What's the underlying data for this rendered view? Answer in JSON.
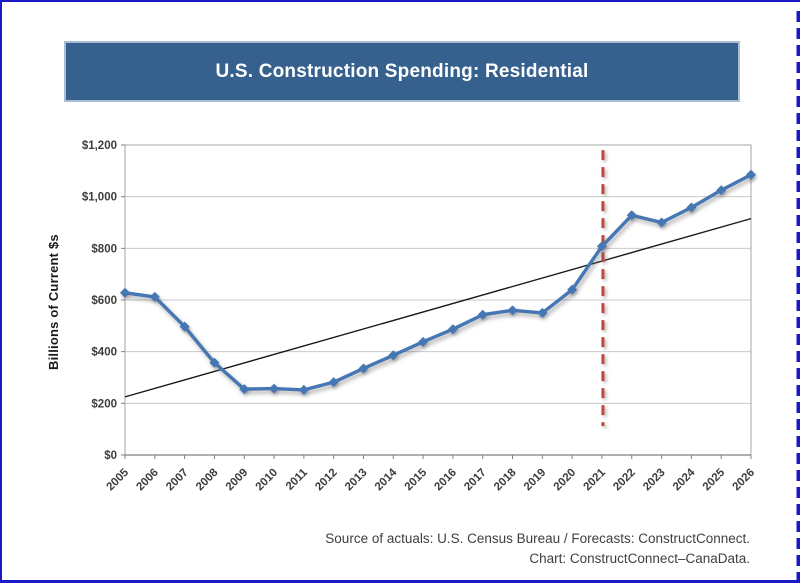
{
  "page": {
    "outer_border_color": "#1c18c4"
  },
  "banner": {
    "title": "U.S. Construction Spending: Residential",
    "bg_color": "#36618e",
    "border_color": "#a9bdd4",
    "text_color": "#ffffff"
  },
  "source_note": {
    "line1": "Source of actuals: U.S. Census Bureau / Forecasts: ConstructConnect.",
    "line2": "Chart: ConstructConnect–CanaData."
  },
  "chart_data": {
    "type": "line",
    "title": "U.S. Construction Spending: Residential",
    "xlabel": "",
    "ylabel": "Billions of Current $s",
    "ylim": [
      0,
      1200
    ],
    "ytick_step": 200,
    "ytick_labels": [
      "$0",
      "$200",
      "$400",
      "$600",
      "$800",
      "$1,000",
      "$1,200"
    ],
    "grid": "horizontal",
    "legend": "none",
    "x": [
      "2005",
      "2006",
      "2007",
      "2008",
      "2009",
      "2010",
      "2011",
      "2012",
      "2013",
      "2014",
      "2015",
      "2016",
      "2017",
      "2018",
      "2019",
      "2020",
      "2021",
      "2022",
      "2023",
      "2024",
      "2025",
      "2026"
    ],
    "series": [
      {
        "name": "U.S. residential construction spending",
        "color": "#4577b4",
        "marker": "diamond",
        "values": [
          628,
          612,
          497,
          357,
          255,
          257,
          252,
          282,
          335,
          386,
          438,
          487,
          543,
          560,
          550,
          640,
          808,
          928,
          900,
          958,
          1025,
          1085
        ]
      },
      {
        "name": "Linear trend",
        "color": "#1a1a1a",
        "style": "straight-line",
        "endpoint_values": [
          225,
          915
        ]
      }
    ],
    "annotations": [
      {
        "type": "vline",
        "x": "2021",
        "meaning": "actuals / forecast divider",
        "style": "dashed",
        "color": "#c0473f",
        "span_values": [
          112,
          1180
        ]
      }
    ],
    "colors": {
      "gridline": "#c9c9c9",
      "plot_frame": "#a6a6a6",
      "axis_line": "#7f7f7f",
      "tick_label": "#3d3d3d"
    }
  }
}
